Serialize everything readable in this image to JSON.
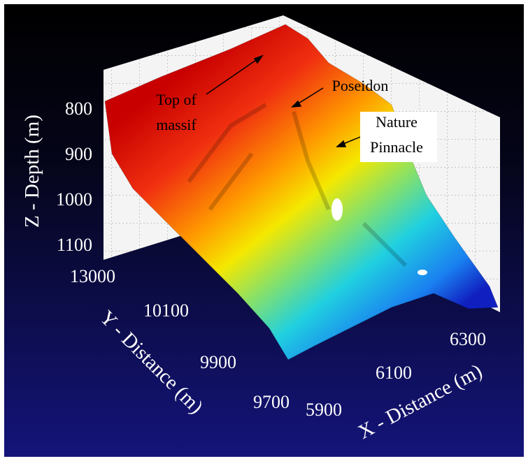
{
  "figure": {
    "z_axis": {
      "label": "Z - Depth  (m)",
      "ticks": [
        800,
        900,
        1000,
        1100
      ]
    },
    "y_axis": {
      "label": "Y - Distance  (m)",
      "ticks": [
        13000,
        10100,
        9900,
        9700
      ]
    },
    "x_axis": {
      "label": "X - Distance  (m)",
      "ticks": [
        5900,
        6100,
        6300
      ]
    },
    "annotations": [
      {
        "lines": [
          "Top of",
          "massif"
        ]
      },
      {
        "lines": [
          "Poseidon"
        ]
      },
      {
        "lines": [
          "Nature",
          "Pinnacle"
        ]
      }
    ]
  }
}
